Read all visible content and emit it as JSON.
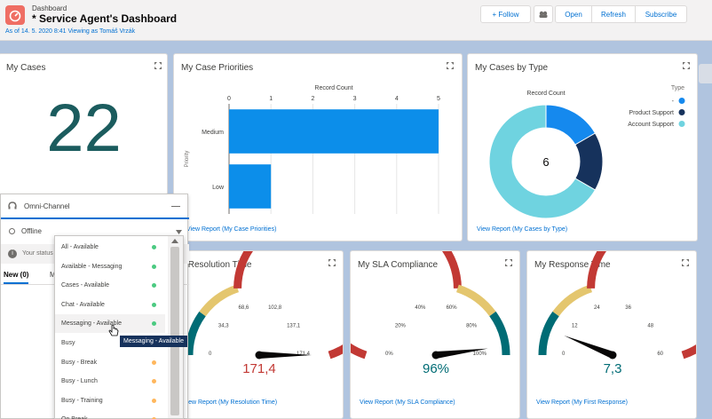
{
  "header": {
    "label": "Dashboard",
    "title": "* Service Agent's Dashboard",
    "subtitle": "As of 14. 5. 2020 8:41 Viewing as Tomáš Vrzák",
    "buttons": {
      "follow": "+ Follow",
      "open": "Open",
      "refresh": "Refresh",
      "subscribe": "Subscribe"
    }
  },
  "my_cases": {
    "title": "My Cases",
    "value": "22"
  },
  "case_priorities": {
    "title": "My Case Priorities",
    "view_report": "View Report (My Case Priorities)",
    "chart_data": {
      "type": "bar",
      "orientation": "horizontal",
      "categories": [
        "Medium",
        "Low"
      ],
      "values": [
        5,
        1
      ],
      "xlabel": "Record Count",
      "ylabel": "Priority",
      "xlim": [
        0,
        5
      ],
      "ticks": [
        "0",
        "1",
        "2",
        "3",
        "4",
        "5"
      ]
    }
  },
  "cases_by_type": {
    "title": "My Cases by Type",
    "view_report": "View Report (My Cases by Type)",
    "chart_data": {
      "type": "pie",
      "donut": true,
      "label": "Record Count",
      "center_value": "6",
      "legend_title": "Type",
      "categories": [
        "-",
        "Product Support",
        "Account Support"
      ],
      "values": [
        1,
        1,
        4
      ],
      "colors": [
        "#1589ee",
        "#16325c",
        "#6fd3e0"
      ]
    }
  },
  "resolution_time": {
    "title": "My Resolution Time",
    "visible_title": "y Resolution Time",
    "view_report": "View Report (My Resolution Time)",
    "value": "171,4",
    "value_color": "#c23934",
    "chart_data": {
      "type": "gauge",
      "min": 0,
      "max": 171.4,
      "value": 171.4,
      "tick_labels": [
        "0",
        "34,3",
        "68,6",
        "102,8",
        "137,1",
        "171,4"
      ]
    }
  },
  "sla": {
    "title": "My SLA Compliance",
    "view_report": "View Report (My SLA Compliance)",
    "value": "96%",
    "value_color": "#006c75",
    "chart_data": {
      "type": "gauge",
      "min": 0,
      "max": 100,
      "value": 96,
      "tick_labels": [
        "0%",
        "20%",
        "40%",
        "60%",
        "80%",
        "100%"
      ]
    }
  },
  "response_time": {
    "title": "My Response Time",
    "view_report": "View Report (My First Response)",
    "value": "7,3",
    "value_color": "#006c75",
    "chart_data": {
      "type": "gauge",
      "min": 0,
      "max": 60,
      "value": 7.3,
      "tick_labels": [
        "0",
        "12",
        "24",
        "36",
        "48",
        "60"
      ]
    }
  },
  "omni": {
    "title": "Omni-Channel",
    "status": "Offline",
    "status_msg": "Your status",
    "tab_new": "New (0)",
    "tab_m": "M",
    "options": [
      {
        "label": "All - Available",
        "color": "#4bca81"
      },
      {
        "label": "Available - Messaging",
        "color": "#4bca81"
      },
      {
        "label": "Cases - Available",
        "color": "#4bca81"
      },
      {
        "label": "Chat - Available",
        "color": "#4bca81"
      },
      {
        "label": "Messaging - Available",
        "color": "#4bca81"
      },
      {
        "label": "Busy",
        "color": "#ffb75d"
      },
      {
        "label": "Busy - Break",
        "color": "#ffb75d"
      },
      {
        "label": "Busy - Lunch",
        "color": "#ffb75d"
      },
      {
        "label": "Busy - Training",
        "color": "#ffb75d"
      },
      {
        "label": "On Break",
        "color": "#ffb75d"
      }
    ],
    "tooltip": "Messaging - Available"
  }
}
